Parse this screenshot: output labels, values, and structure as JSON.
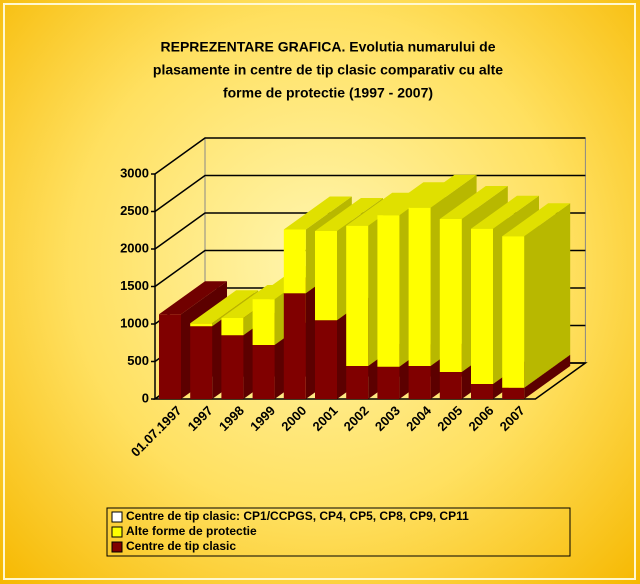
{
  "chart_data": {
    "type": "bar3d_stacked",
    "title": [
      "REPREZENTARE GRAFICA. Evolutia numarului de",
      "plasamente in centre de tip clasic comparativ cu alte",
      "forme de protectie (1997 - 2007)"
    ],
    "categories": [
      "01.07.1997",
      "1997",
      "1998",
      "1999",
      "2000",
      "2001",
      "2002",
      "2003",
      "2004",
      "2005",
      "2006",
      "2007"
    ],
    "series": [
      {
        "name": "Centre de tip clasic: CP1/CCPGS, CP4, CP5, CP8, CP9, CP11",
        "color": "#ffffff",
        "values": [
          0,
          0,
          0,
          0,
          0,
          0,
          0,
          0,
          0,
          0,
          0,
          0
        ]
      },
      {
        "name": "Alte forme de protectie",
        "color": "#ffff00",
        "values": [
          0,
          40,
          230,
          610,
          850,
          1190,
          1870,
          2020,
          2110,
          2040,
          2070,
          2020
        ]
      },
      {
        "name": "Centre de tip clasic",
        "color": "#800000",
        "values": [
          1130,
          970,
          850,
          720,
          1410,
          1050,
          440,
          430,
          440,
          360,
          200,
          150
        ]
      }
    ],
    "stack_order": [
      2,
      1,
      0
    ],
    "ylim": [
      0,
      3000
    ],
    "yticks": [
      0,
      500,
      1000,
      1500,
      2000,
      2500,
      3000
    ],
    "grid": true
  }
}
